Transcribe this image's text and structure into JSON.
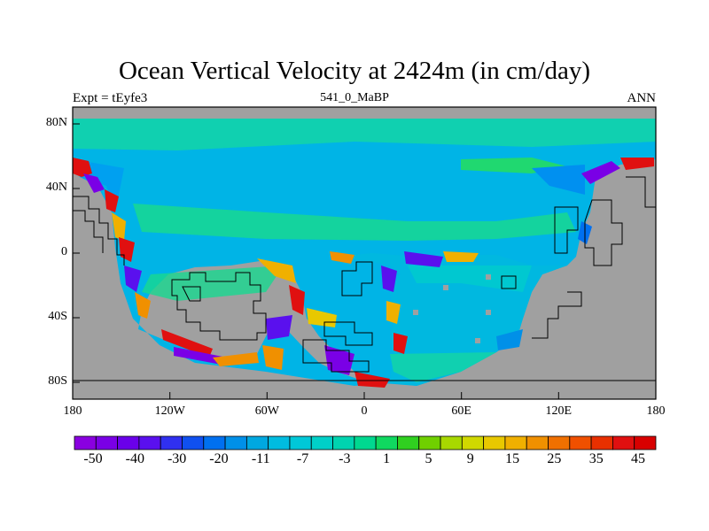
{
  "title": "Ocean Vertical Velocity at 2424m (in cm/day)",
  "left_label": "Expt = tEyfe3",
  "center_label": "541_0_MaBP",
  "right_label": "ANN",
  "x_ticks": [
    "180",
    "120W",
    "60W",
    "0",
    "60E",
    "120E",
    "180"
  ],
  "y_ticks": [
    "80N",
    "40N",
    "0",
    "40S",
    "80S"
  ],
  "colorbar": {
    "labels": [
      "-50",
      "-40",
      "-30",
      "-20",
      "-11",
      "-7",
      "-3",
      "1",
      "5",
      "9",
      "15",
      "25",
      "35",
      "45"
    ],
    "colors": [
      "#8a00e0",
      "#7a00e6",
      "#6a00ea",
      "#5a10ee",
      "#3030f0",
      "#1050f0",
      "#0070f0",
      "#0090e8",
      "#00a8e0",
      "#00bce0",
      "#00c8d8",
      "#00d0c8",
      "#00d4b0",
      "#00d890",
      "#10d860",
      "#30d020",
      "#70d000",
      "#a8d800",
      "#d0d800",
      "#e8c800",
      "#f0b000",
      "#f09000",
      "#f07000",
      "#f05000",
      "#e83000",
      "#e01010",
      "#d80000"
    ]
  },
  "colors": {
    "land": "#a0a0a0",
    "ocean_main": "#00b4e6",
    "ocean_green": "#18d890"
  }
}
